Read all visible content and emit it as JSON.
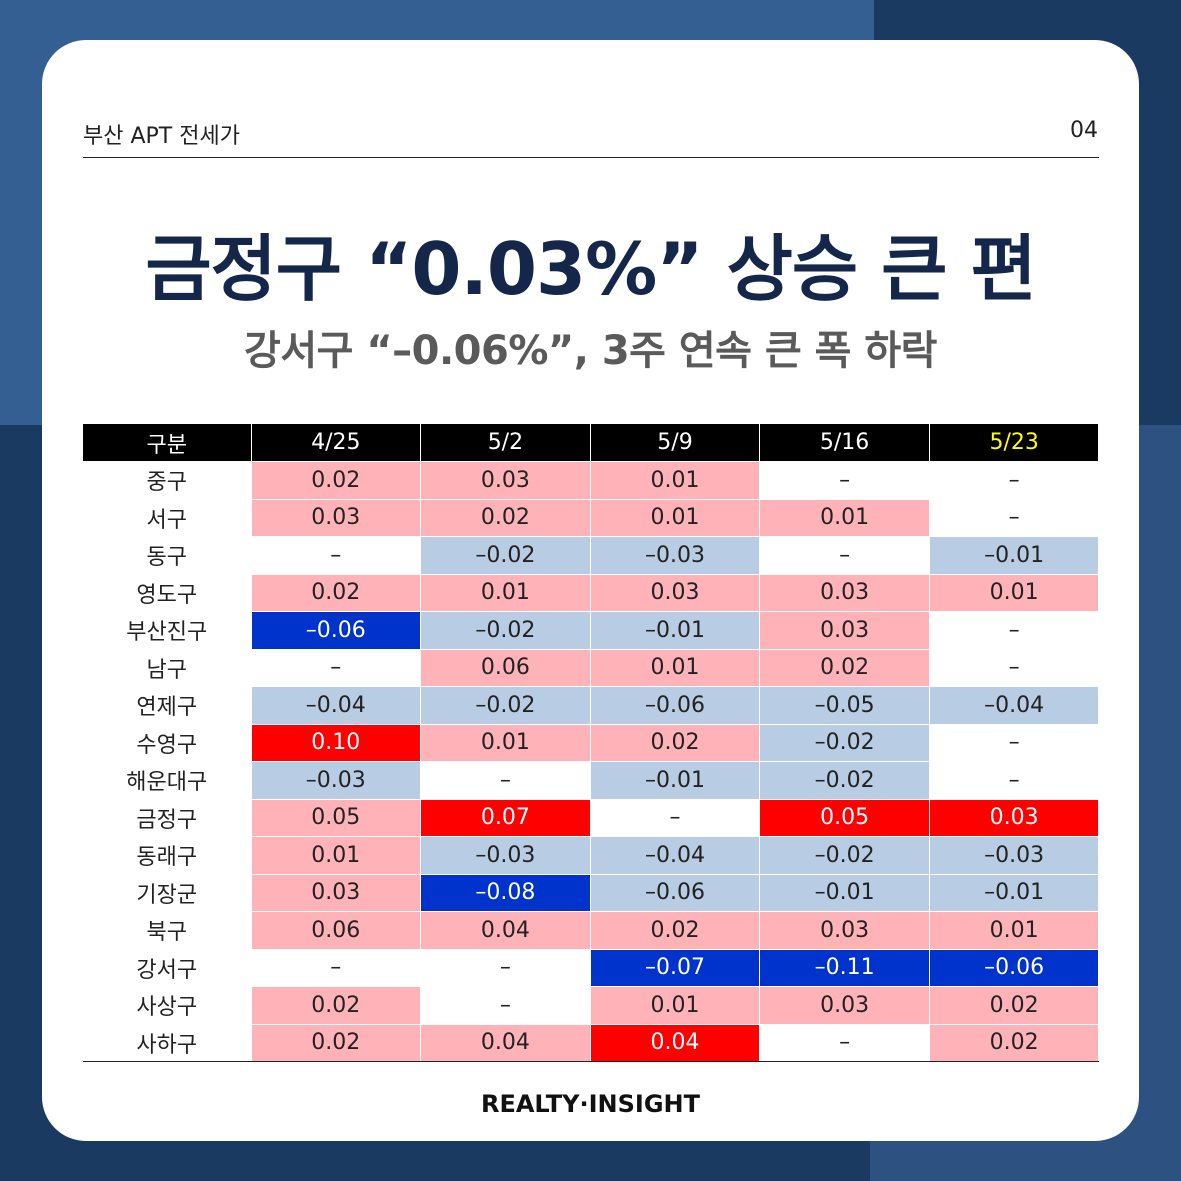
{
  "header": {
    "label": "부산 APT 전세가",
    "page": "04"
  },
  "title": "금정구 “0.03%” 상승 큰 편",
  "subtitle": "강서구 “–0.06%”, 3주 연속 큰 폭 하락",
  "footer": "REALTY·INSIGHT",
  "colors": {
    "navy": "#14274a",
    "rise_light": "#ffb3b8",
    "rise_strong": "#ff0000",
    "fall_light": "#b8cce4",
    "fall_strong": "#0033cc",
    "latest_header": "#ffff00"
  },
  "chart_data": {
    "type": "table",
    "corner": "구분",
    "columns": [
      "4/25",
      "5/2",
      "5/9",
      "5/16",
      "5/23"
    ],
    "rows": [
      {
        "region": "중구",
        "values": [
          "0.02",
          "0.03",
          "0.01",
          "–",
          "–"
        ]
      },
      {
        "region": "서구",
        "values": [
          "0.03",
          "0.02",
          "0.01",
          "0.01",
          "–"
        ]
      },
      {
        "region": "동구",
        "values": [
          "–",
          "–0.02",
          "–0.03",
          "–",
          "–0.01"
        ]
      },
      {
        "region": "영도구",
        "values": [
          "0.02",
          "0.01",
          "0.03",
          "0.03",
          "0.01"
        ]
      },
      {
        "region": "부산진구",
        "values": [
          "–0.06",
          "–0.02",
          "–0.01",
          "0.03",
          "–"
        ]
      },
      {
        "region": "남구",
        "values": [
          "–",
          "0.06",
          "0.01",
          "0.02",
          "–"
        ]
      },
      {
        "region": "연제구",
        "values": [
          "–0.04",
          "–0.02",
          "–0.06",
          "–0.05",
          "–0.04"
        ]
      },
      {
        "region": "수영구",
        "values": [
          "0.10",
          "0.01",
          "0.02",
          "–0.02",
          "–"
        ]
      },
      {
        "region": "해운대구",
        "values": [
          "–0.03",
          "–",
          "–0.01",
          "–0.02",
          "–"
        ]
      },
      {
        "region": "금정구",
        "values": [
          "0.05",
          "0.07",
          "–",
          "0.05",
          "0.03"
        ]
      },
      {
        "region": "동래구",
        "values": [
          "0.01",
          "–0.03",
          "–0.04",
          "–0.02",
          "–0.03"
        ]
      },
      {
        "region": "기장군",
        "values": [
          "0.03",
          "–0.08",
          "–0.06",
          "–0.01",
          "–0.01"
        ]
      },
      {
        "region": "북구",
        "values": [
          "0.06",
          "0.04",
          "0.02",
          "0.03",
          "0.01"
        ]
      },
      {
        "region": "강서구",
        "values": [
          "–",
          "–",
          "–0.07",
          "–0.11",
          "–0.06"
        ]
      },
      {
        "region": "사상구",
        "values": [
          "0.02",
          "–",
          "0.01",
          "0.03",
          "0.02"
        ]
      },
      {
        "region": "사하구",
        "values": [
          "0.02",
          "0.04",
          "0.04",
          "–",
          "0.02"
        ]
      }
    ],
    "shading": [
      [
        "up1",
        "up1",
        "up1",
        "none",
        "none"
      ],
      [
        "up1",
        "up1",
        "up1",
        "up1",
        "none"
      ],
      [
        "none",
        "dn1",
        "dn1",
        "none",
        "dn1"
      ],
      [
        "up1",
        "up1",
        "up1",
        "up1",
        "up1"
      ],
      [
        "dn2",
        "dn1",
        "dn1",
        "up1",
        "none"
      ],
      [
        "none",
        "up1",
        "up1",
        "up1",
        "none"
      ],
      [
        "dn1",
        "dn1",
        "dn1",
        "dn1",
        "dn1"
      ],
      [
        "up2",
        "up1",
        "up1",
        "dn1",
        "none"
      ],
      [
        "dn1",
        "none",
        "dn1",
        "dn1",
        "none"
      ],
      [
        "up1",
        "up2",
        "none",
        "up2",
        "up2"
      ],
      [
        "up1",
        "dn1",
        "dn1",
        "dn1",
        "dn1"
      ],
      [
        "up1",
        "dn2",
        "dn1",
        "dn1",
        "dn1"
      ],
      [
        "up1",
        "up1",
        "up1",
        "up1",
        "up1"
      ],
      [
        "none",
        "none",
        "dn2",
        "dn2",
        "dn2"
      ],
      [
        "up1",
        "none",
        "up1",
        "up1",
        "up1"
      ],
      [
        "up1",
        "up1",
        "up2",
        "none",
        "up1"
      ]
    ]
  }
}
